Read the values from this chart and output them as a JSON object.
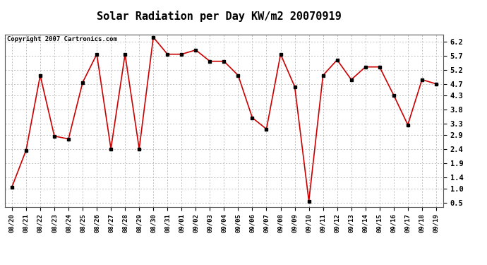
{
  "title": "Solar Radiation per Day KW/m2 20070919",
  "copyright_text": "Copyright 2007 Cartronics.com",
  "x_labels": [
    "08/20",
    "08/21",
    "08/22",
    "08/23",
    "08/24",
    "08/25",
    "08/26",
    "08/27",
    "08/28",
    "08/29",
    "08/30",
    "08/31",
    "09/01",
    "09/02",
    "09/03",
    "09/04",
    "09/05",
    "09/06",
    "09/07",
    "09/08",
    "09/09",
    "09/10",
    "09/11",
    "09/12",
    "09/13",
    "09/14",
    "09/15",
    "09/16",
    "09/17",
    "09/18",
    "09/19"
  ],
  "y_values": [
    1.05,
    2.35,
    5.0,
    2.85,
    2.75,
    4.75,
    5.75,
    2.4,
    5.75,
    2.4,
    6.35,
    5.75,
    5.75,
    5.9,
    5.5,
    5.5,
    5.0,
    3.5,
    3.1,
    5.75,
    4.6,
    0.55,
    5.0,
    5.55,
    4.85,
    5.3,
    5.3,
    4.3,
    3.25,
    4.85,
    4.7
  ],
  "y_ticks": [
    0.5,
    1.0,
    1.4,
    1.9,
    2.4,
    2.9,
    3.3,
    3.8,
    4.3,
    4.7,
    5.2,
    5.7,
    6.2
  ],
  "line_color": "#cc0000",
  "marker_color": "#000000",
  "bg_color": "#ffffff",
  "grid_color": "#aaaaaa",
  "ylim": [
    0.35,
    6.45
  ],
  "title_fontsize": 11,
  "copyright_fontsize": 6.5,
  "tick_fontsize": 6.5,
  "ytick_fontsize": 7.5
}
